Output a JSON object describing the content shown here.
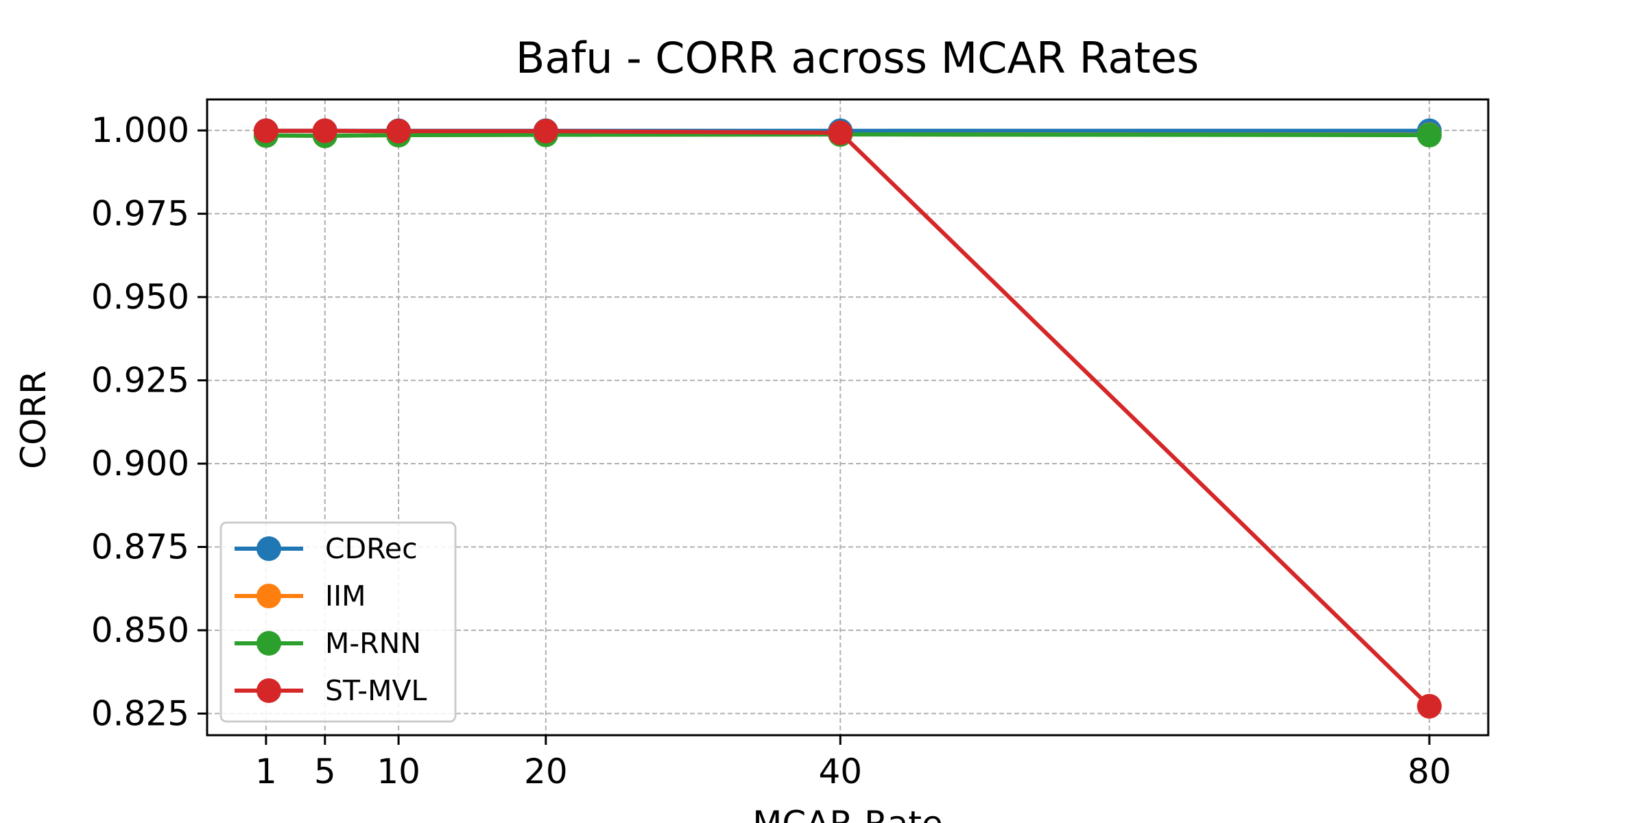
{
  "chart_data": {
    "type": "line",
    "title": "Bafu - CORR across MCAR Rates",
    "xlabel": "MCAR Rate",
    "ylabel": "CORR",
    "x": [
      1,
      5,
      10,
      20,
      40,
      80
    ],
    "xticks": [
      "1",
      "5",
      "10",
      "20",
      "40",
      "80"
    ],
    "xlim": [
      -3,
      84
    ],
    "ylim": [
      0.8185,
      1.0093
    ],
    "yticks": [
      "0.825",
      "0.850",
      "0.875",
      "0.900",
      "0.925",
      "0.950",
      "0.975",
      "1.000"
    ],
    "grid": true,
    "legend_position": "lower-left",
    "series": [
      {
        "name": "CDRec",
        "color": "#1f77b4",
        "values": [
          0.9999,
          0.9999,
          0.9999,
          0.9999,
          0.9999,
          0.9999
        ]
      },
      {
        "name": "IIM",
        "color": "#ff7f0e",
        "values": [
          0.9985,
          0.9984,
          0.9986,
          0.9987,
          0.9988,
          0.9987
        ]
      },
      {
        "name": "M-RNN",
        "color": "#2ca02c",
        "values": [
          0.9985,
          0.9984,
          0.9986,
          0.9987,
          0.9988,
          0.9986
        ]
      },
      {
        "name": "ST-MVL",
        "color": "#d62728",
        "values": [
          0.9999,
          0.9999,
          0.9998,
          0.9998,
          0.9993,
          0.8272
        ]
      }
    ]
  }
}
